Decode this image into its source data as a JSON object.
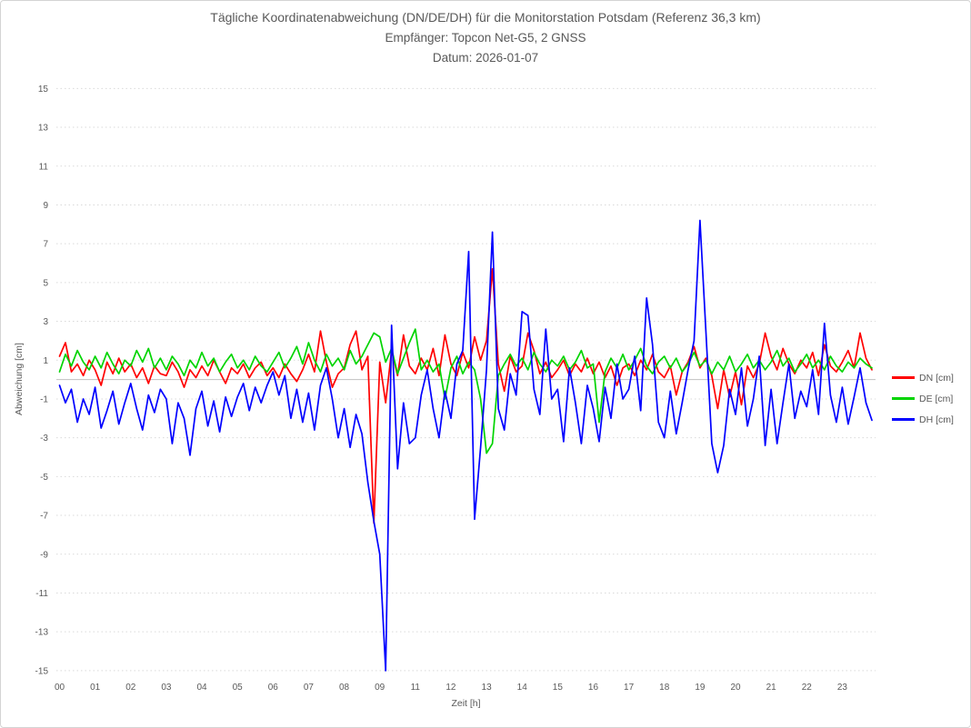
{
  "title": {
    "line1": "Tägliche Koordinatenabweichung (DN/DE/DH) für die Monitorstation Potsdam (Referenz 36,3 km)",
    "line2": "Empfänger: Topcon Net-G5, 2 GNSS",
    "line3": "Datum: 2026-01-07"
  },
  "colors": {
    "dn": "#ff0000",
    "de": "#00d400",
    "dh": "#0000ff",
    "text": "#595959",
    "gridline": "#d9d9d9",
    "zero_line": "#c0c0c0",
    "background": "#ffffff"
  },
  "chart_data": {
    "type": "line",
    "title": "Tägliche Koordinatenabweichung (DN/DE/DH) für die Monitorstation Potsdam (Referenz 36,3 km)",
    "subtitle": "Empfänger: Topcon Net-G5, 2 GNSS",
    "date_line": "Datum: 2026-01-07",
    "xlabel": "Zeit [h]",
    "ylabel": "Abweichung [cm]",
    "ylim": [
      -15,
      15
    ],
    "yticks": [
      15,
      13,
      11,
      9,
      7,
      5,
      3,
      1,
      -1,
      -3,
      -5,
      -7,
      -9,
      -11,
      -13,
      -15
    ],
    "xtick_labels": [
      "00",
      "01",
      "02",
      "03",
      "04",
      "05",
      "06",
      "07",
      "08",
      "09",
      "11",
      "12",
      "13",
      "14",
      "15",
      "16",
      "17",
      "18",
      "19",
      "20",
      "21",
      "22",
      "23"
    ],
    "points_per_hour_slot": 6,
    "grid": "horizontal-dotted",
    "legend_position": "right",
    "series": [
      {
        "name": "DN [cm]",
        "color": "#ff0000",
        "values": [
          1.2,
          1.9,
          0.4,
          0.8,
          0.2,
          1.0,
          0.5,
          -0.3,
          0.9,
          0.3,
          1.1,
          0.4,
          0.8,
          0.1,
          0.6,
          -0.2,
          0.7,
          0.3,
          0.2,
          0.9,
          0.4,
          -0.4,
          0.5,
          0.1,
          0.7,
          0.2,
          1.0,
          0.4,
          -0.2,
          0.6,
          0.3,
          0.8,
          0.1,
          0.6,
          0.9,
          0.2,
          0.6,
          0.1,
          0.8,
          0.3,
          -0.1,
          0.5,
          1.3,
          0.4,
          2.5,
          0.9,
          -0.4,
          0.3,
          0.6,
          1.8,
          2.5,
          0.5,
          1.2,
          -7.4,
          0.9,
          -1.2,
          1.5,
          0.2,
          2.3,
          0.7,
          0.3,
          1.1,
          0.5,
          1.6,
          0.2,
          2.3,
          0.8,
          0.2,
          1.4,
          0.6,
          2.2,
          1.0,
          2.0,
          5.7,
          0.8,
          -0.6,
          1.2,
          0.4,
          0.7,
          2.4,
          1.5,
          0.3,
          0.9,
          0.1,
          0.5,
          1.0,
          0.2,
          0.8,
          0.4,
          1.1,
          0.3,
          0.9,
          0.1,
          0.7,
          -0.3,
          0.6,
          0.8,
          0.2,
          1.0,
          0.5,
          1.3,
          0.4,
          0.1,
          0.7,
          -0.8,
          0.4,
          0.9,
          1.7,
          0.6,
          1.1,
          0.2,
          -1.5,
          0.5,
          -0.9,
          0.4,
          -1.3,
          0.7,
          0.1,
          0.8,
          2.4,
          1.2,
          0.5,
          1.6,
          0.8,
          0.3,
          1.0,
          0.6,
          1.4,
          0.2,
          1.8,
          0.7,
          0.4,
          0.9,
          1.5,
          0.6,
          2.4,
          1.1,
          0.5
        ]
      },
      {
        "name": "DE [cm]",
        "color": "#00d400",
        "values": [
          0.4,
          1.3,
          0.7,
          1.5,
          0.9,
          0.5,
          1.2,
          0.6,
          1.4,
          0.8,
          0.3,
          1.0,
          0.7,
          1.5,
          0.9,
          1.6,
          0.6,
          1.1,
          0.5,
          1.2,
          0.8,
          0.2,
          1.0,
          0.6,
          1.4,
          0.7,
          1.1,
          0.4,
          0.9,
          1.3,
          0.6,
          1.0,
          0.5,
          1.2,
          0.7,
          0.4,
          0.9,
          1.4,
          0.6,
          1.1,
          1.7,
          0.8,
          1.9,
          1.0,
          0.4,
          1.3,
          0.7,
          1.1,
          0.5,
          1.5,
          0.8,
          1.2,
          1.8,
          2.4,
          2.2,
          0.9,
          1.6,
          0.3,
          1.1,
          1.9,
          2.6,
          0.5,
          1.0,
          0.4,
          0.8,
          -1.0,
          0.6,
          1.2,
          0.3,
          0.9,
          0.5,
          -1.0,
          -3.8,
          -3.3,
          0.2,
          0.8,
          1.3,
          0.7,
          1.1,
          0.5,
          1.4,
          0.8,
          0.4,
          1.0,
          0.7,
          1.2,
          0.5,
          0.9,
          1.5,
          0.6,
          0.8,
          -2.2,
          0.4,
          1.1,
          0.6,
          1.3,
          0.5,
          1.0,
          1.6,
          0.7,
          0.3,
          0.9,
          1.2,
          0.6,
          1.1,
          0.4,
          0.8,
          1.4,
          0.7,
          1.0,
          0.3,
          0.9,
          0.5,
          1.2,
          0.4,
          0.8,
          1.3,
          0.6,
          1.0,
          0.5,
          0.9,
          1.5,
          0.7,
          1.1,
          0.4,
          0.8,
          1.3,
          0.6,
          1.0,
          0.5,
          1.2,
          0.7,
          0.4,
          0.9,
          0.6,
          1.1,
          0.8,
          0.6
        ]
      },
      {
        "name": "DH [cm]",
        "color": "#0000ff",
        "values": [
          -0.3,
          -1.2,
          -0.5,
          -2.2,
          -1.0,
          -1.8,
          -0.4,
          -2.5,
          -1.6,
          -0.6,
          -2.3,
          -1.2,
          -0.2,
          -1.5,
          -2.6,
          -0.8,
          -1.7,
          -0.5,
          -1.0,
          -3.3,
          -1.2,
          -2.0,
          -3.9,
          -1.5,
          -0.6,
          -2.4,
          -1.1,
          -2.7,
          -0.9,
          -1.9,
          -0.9,
          -0.2,
          -1.6,
          -0.4,
          -1.2,
          -0.3,
          0.4,
          -0.8,
          0.2,
          -2.0,
          -0.5,
          -2.2,
          -0.7,
          -2.6,
          -0.3,
          0.6,
          -1.0,
          -3.0,
          -1.5,
          -3.5,
          -1.8,
          -2.8,
          -5.3,
          -7.3,
          -9.0,
          -15.0,
          2.8,
          -4.6,
          -1.2,
          -3.3,
          -3.0,
          -0.8,
          0.5,
          -1.5,
          -3.0,
          -0.6,
          -2.0,
          0.8,
          1.5,
          6.6,
          -7.2,
          -3.5,
          0.5,
          7.6,
          -1.5,
          -2.6,
          0.3,
          -0.8,
          3.5,
          3.3,
          -0.5,
          -1.8,
          2.6,
          -1.0,
          -0.5,
          -3.2,
          0.6,
          -1.2,
          -3.3,
          -0.3,
          -1.5,
          -3.2,
          -0.4,
          -2.0,
          0.8,
          -1.0,
          -0.5,
          1.2,
          -1.6,
          4.2,
          1.8,
          -2.2,
          -3.0,
          -0.6,
          -2.8,
          -1.2,
          0.5,
          2.0,
          8.2,
          2.5,
          -3.3,
          -4.8,
          -3.4,
          -0.5,
          -1.8,
          0.6,
          -2.4,
          -1.0,
          1.2,
          -3.4,
          -0.5,
          -3.3,
          -1.2,
          0.8,
          -2.0,
          -0.6,
          -1.4,
          0.5,
          -1.8,
          2.9,
          -0.8,
          -2.2,
          -0.4,
          -2.3,
          -0.9,
          0.6,
          -1.2,
          -2.1
        ]
      }
    ]
  }
}
